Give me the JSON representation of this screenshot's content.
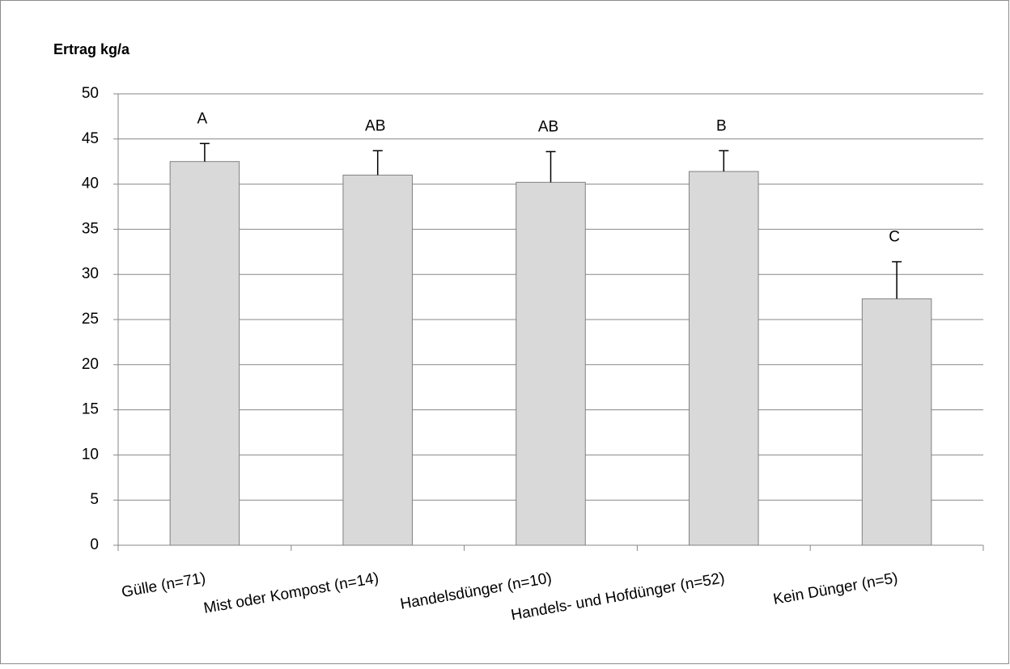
{
  "chart_data": {
    "type": "bar",
    "title": "Ertrag kg/a",
    "categories": [
      "Gülle (n=71)",
      "Mist oder Kompost (n=14)",
      "Handelsdünger (n=10)",
      "Handels- und Hofdünger (n=52)",
      "Kein Dünger (n=5)"
    ],
    "values": [
      42.5,
      41.0,
      40.2,
      41.4,
      27.3
    ],
    "errors": [
      2.0,
      2.7,
      3.4,
      2.3,
      4.1
    ],
    "letters": [
      "A",
      "AB",
      "AB",
      "B",
      "C"
    ],
    "color": "#d9d9d9",
    "ylim": [
      0,
      50
    ],
    "yticks": [
      0,
      5,
      10,
      15,
      20,
      25,
      30,
      35,
      40,
      45,
      50
    ],
    "grid": true
  }
}
